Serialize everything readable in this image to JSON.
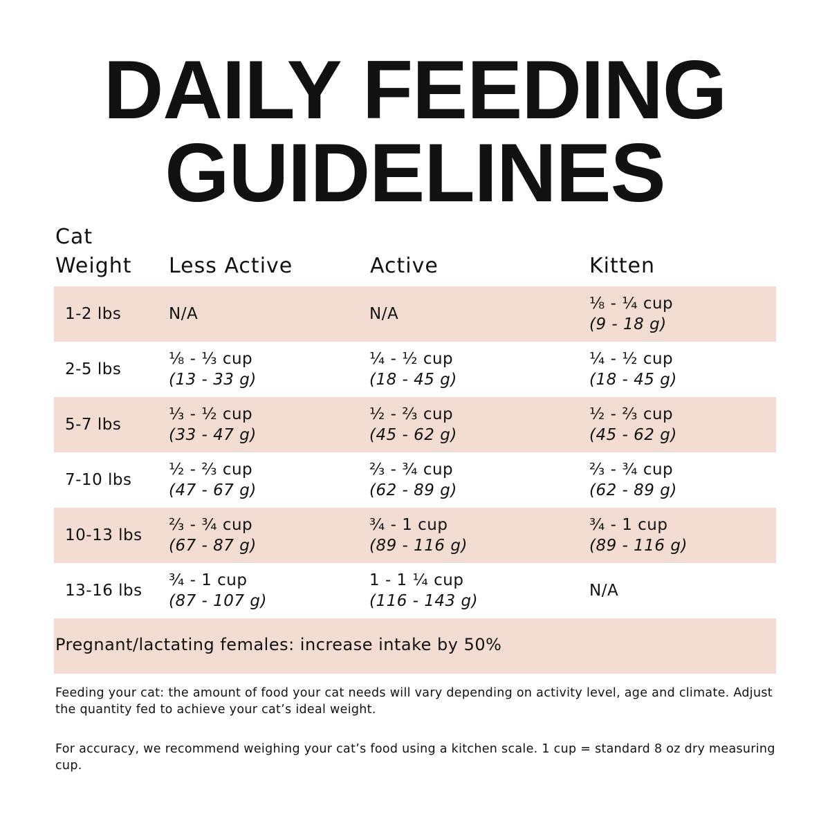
{
  "title": {
    "line1": "DAILY FEEDING",
    "line2": "GUIDELINES"
  },
  "table": {
    "headers": {
      "weight_line1": "Cat",
      "weight_line2": "Weight",
      "less_active": "Less Active",
      "active": "Active",
      "kitten": "Kitten"
    },
    "rows": [
      {
        "weight": "1-2 lbs",
        "less_active": {
          "cup": "N/A",
          "grams": ""
        },
        "active": {
          "cup": "N/A",
          "grams": ""
        },
        "kitten": {
          "cup": "⅛ - ¼ cup",
          "grams": "(9 - 18 g)"
        }
      },
      {
        "weight": "2-5 lbs",
        "less_active": {
          "cup": "⅛ - ⅓ cup",
          "grams": "(13 - 33 g)"
        },
        "active": {
          "cup": "¼ - ½ cup",
          "grams": "(18 - 45 g)"
        },
        "kitten": {
          "cup": "¼ - ½ cup",
          "grams": "(18 - 45 g)"
        }
      },
      {
        "weight": "5-7 lbs",
        "less_active": {
          "cup": "⅓ - ½ cup",
          "grams": "(33 - 47 g)"
        },
        "active": {
          "cup": "½ - ⅔ cup",
          "grams": "(45 - 62 g)"
        },
        "kitten": {
          "cup": "½ - ⅔ cup",
          "grams": "(45 - 62 g)"
        }
      },
      {
        "weight": "7-10 lbs",
        "less_active": {
          "cup": "½ - ⅔ cup",
          "grams": "(47 - 67 g)"
        },
        "active": {
          "cup": "⅔ - ¾ cup",
          "grams": "(62 - 89 g)"
        },
        "kitten": {
          "cup": "⅔ - ¾ cup",
          "grams": "(62 - 89 g)"
        }
      },
      {
        "weight": "10-13 lbs",
        "less_active": {
          "cup": "⅔ - ¾ cup",
          "grams": "(67 - 87 g)"
        },
        "active": {
          "cup": "¾ - 1 cup",
          "grams": "(89 - 116 g)"
        },
        "kitten": {
          "cup": "¾ - 1 cup",
          "grams": "(89 - 116 g)"
        }
      },
      {
        "weight": "13-16 lbs",
        "less_active": {
          "cup": "¾ - 1 cup",
          "grams": "(87 - 107 g)"
        },
        "active": {
          "cup": "1 - 1 ¼ cup",
          "grams": "(116 - 143 g)"
        },
        "kitten": {
          "cup": "N/A",
          "grams": ""
        }
      }
    ],
    "note": "Pregnant/lactating females: increase intake by 50%"
  },
  "footer": {
    "p1": "Feeding your cat: the amount of food your cat needs will vary depending on activity level, age and climate. Adjust the quantity fed to achieve your cat’s ideal weight.",
    "p2": "For accuracy, we recommend weighing your cat’s food using a kitchen scale. 1 cup = standard 8 oz dry measuring cup."
  },
  "colors": {
    "row_shade": "#f3ddd3",
    "text": "#111111"
  }
}
